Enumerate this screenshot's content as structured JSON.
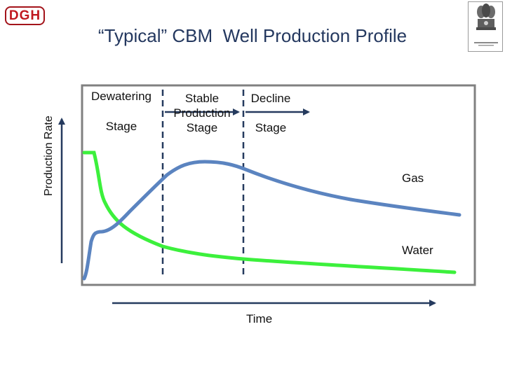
{
  "logo": {
    "text": "DGH"
  },
  "title": "“Typical” CBM  Well Production Profile",
  "stages": [
    {
      "label_line1": "Dewatering",
      "label_line2": "Stage"
    },
    {
      "label_line1": "Stable",
      "label_line2": "Production",
      "label_line3": "Stage"
    },
    {
      "label_line1": "Decline",
      "label_line2": "Stage"
    }
  ],
  "curves": {
    "gas_label": "Gas",
    "water_label": "Water"
  },
  "axes": {
    "y_label": "Production Rate",
    "x_label": "Time"
  },
  "colors": {
    "gas": "#5b84c0",
    "water": "#3cf03c",
    "frame": "#808080",
    "divider": "#253a5e",
    "axis_arrow": "#253a5e",
    "title": "#24385f",
    "logo": "#c0181f"
  },
  "icons": {
    "emblem": "state-emblem-icon"
  }
}
